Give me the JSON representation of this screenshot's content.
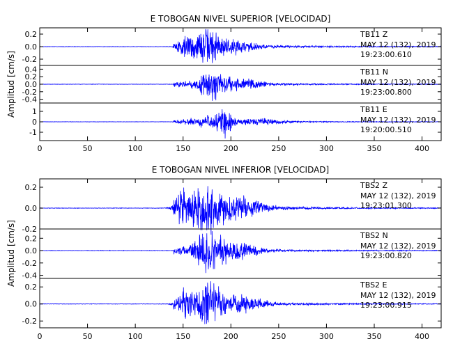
{
  "chart_data": [
    {
      "type": "line",
      "title": "E TOBOGAN NIVEL SUPERIOR [VELOCIDAD]",
      "ylabel": "Amplitud [cm/s]",
      "xlim": [
        0,
        420
      ],
      "xticks": [
        "0",
        "50",
        "100",
        "150",
        "200",
        "250",
        "300",
        "350",
        "400"
      ],
      "color": "#0000ff",
      "traces": [
        {
          "station": "TB11",
          "component": "Z",
          "date": "MAY 12 (132), 2019",
          "time": "19:23:00.610",
          "ylim": [
            -0.3,
            0.3
          ],
          "yticks": [
            "0.2",
            "0.0",
            "-0.2"
          ],
          "peak": 0.3,
          "noise": 0.004,
          "bursts": [
            {
              "center": 177,
              "width": 14,
              "amp": 0.28
            },
            {
              "center": 155,
              "width": 9,
              "amp": 0.18
            },
            {
              "center": 205,
              "width": 22,
              "amp": 0.1
            }
          ],
          "tail": {
            "start": 140,
            "tau": 90,
            "amp": 0.07
          }
        },
        {
          "station": "TB11",
          "component": "N",
          "date": "MAY 12 (132), 2019",
          "time": "19:23:00.800",
          "ylim": [
            -0.5,
            0.5
          ],
          "yticks": [
            "0.4",
            "0.2",
            "0.0",
            "-0.2",
            "-0.4"
          ],
          "peak": 0.45,
          "noise": 0.006,
          "bursts": [
            {
              "center": 180,
              "width": 15,
              "amp": 0.4
            },
            {
              "center": 210,
              "width": 25,
              "amp": 0.15
            }
          ],
          "tail": {
            "start": 140,
            "tau": 90,
            "amp": 0.09
          }
        },
        {
          "station": "TB11",
          "component": "E",
          "date": "MAY 12 (132), 2019",
          "time": "19:20:00.510",
          "ylim": [
            -1.8,
            1.8
          ],
          "yticks": [
            "1",
            "0",
            "-1"
          ],
          "peak": 1.6,
          "noise": 0.02,
          "bursts": [
            {
              "center": 193,
              "width": 8,
              "amp": 1.55
            },
            {
              "center": 175,
              "width": 18,
              "amp": 0.5
            },
            {
              "center": 230,
              "width": 25,
              "amp": 0.3
            }
          ],
          "tail": {
            "start": 140,
            "tau": 95,
            "amp": 0.2
          }
        }
      ]
    },
    {
      "type": "line",
      "title": "E TOBOGAN NIVEL INFERIOR [VELOCIDAD]",
      "ylabel": "Amplitud [cm/s]",
      "xlim": [
        0,
        420
      ],
      "xticks": [
        "0",
        "50",
        "100",
        "150",
        "200",
        "250",
        "300",
        "350",
        "400"
      ],
      "color": "#0000ff",
      "traces": [
        {
          "station": "TBS2",
          "component": "Z",
          "date": "MAY 12 (132), 2019",
          "time": "19:23:01.300",
          "ylim": [
            -0.2,
            0.28
          ],
          "yticks": [
            "0.2",
            "0.0",
            "-0.2"
          ],
          "peak": 0.27,
          "noise": 0.003,
          "bursts": [
            {
              "center": 175,
              "width": 16,
              "amp": 0.26
            },
            {
              "center": 150,
              "width": 9,
              "amp": 0.15
            },
            {
              "center": 210,
              "width": 25,
              "amp": 0.1
            }
          ],
          "tail": {
            "start": 140,
            "tau": 85,
            "amp": 0.06
          }
        },
        {
          "station": "TBS2",
          "component": "N",
          "date": "MAY 12 (132), 2019",
          "time": "19:23:00.820",
          "ylim": [
            -0.45,
            0.35
          ],
          "yticks": [
            "0.2",
            "0.0",
            "-0.2",
            "-0.4"
          ],
          "peak": 0.4,
          "noise": 0.005,
          "bursts": [
            {
              "center": 176,
              "width": 14,
              "amp": 0.38
            },
            {
              "center": 205,
              "width": 22,
              "amp": 0.15
            }
          ],
          "tail": {
            "start": 140,
            "tau": 85,
            "amp": 0.07
          }
        },
        {
          "station": "TBS2",
          "component": "E",
          "date": "MAY 12 (132), 2019",
          "time": "19:23:00.915",
          "ylim": [
            -0.28,
            0.3
          ],
          "yticks": [
            "0.2",
            "0.0",
            "-0.2"
          ],
          "peak": 0.3,
          "noise": 0.003,
          "bursts": [
            {
              "center": 177,
              "width": 13,
              "amp": 0.28
            },
            {
              "center": 152,
              "width": 9,
              "amp": 0.15
            },
            {
              "center": 210,
              "width": 25,
              "amp": 0.1
            }
          ],
          "tail": {
            "start": 140,
            "tau": 85,
            "amp": 0.06
          }
        }
      ]
    }
  ]
}
